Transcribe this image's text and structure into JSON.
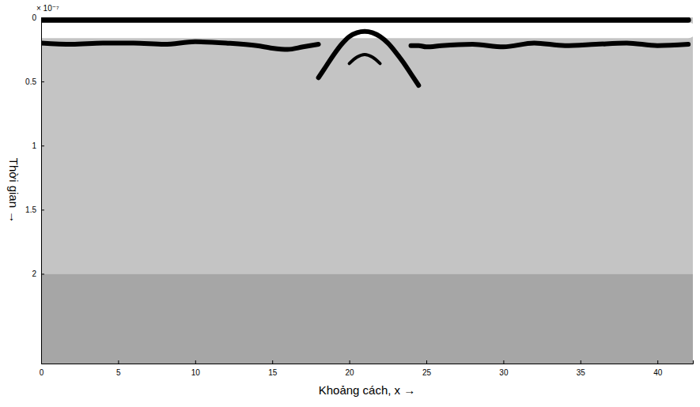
{
  "chart_data": {
    "type": "line",
    "x_label": "Khoảng cách, x →",
    "y_label": "Thời gian →",
    "annotations": [
      "× 10⁻⁷"
    ],
    "xlim": [
      0,
      42.3
    ],
    "xticks": [
      0,
      5,
      10,
      15,
      20,
      25,
      30,
      35,
      40
    ],
    "ylim": [
      0,
      2.7
    ],
    "yticks": [
      0,
      0.5,
      1,
      1.5,
      2
    ],
    "record_end": 2,
    "grid": false,
    "x": [
      0,
      2,
      4,
      6,
      8,
      10,
      12,
      14,
      15,
      16,
      17,
      18,
      18.5,
      19,
      19.5,
      20,
      20.5,
      21,
      21.5,
      22,
      22.5,
      23,
      23.5,
      24,
      24.5,
      25,
      26,
      28,
      30,
      32,
      34,
      36,
      38,
      40,
      42
    ],
    "series": [
      {
        "color": "#ffffff",
        "values": [
          0.1,
          0.1,
          0.1,
          0.1,
          0.1,
          0.1,
          0.1,
          0.1,
          0.1,
          0.1,
          0.1,
          0.1,
          0.1,
          0.1,
          0.1,
          0.1,
          0.1,
          0.1,
          0.1,
          0.1,
          0.1,
          0.1,
          0.1,
          0.1,
          0.1,
          0.1,
          0.1,
          0.1,
          0.1,
          0.1,
          0.1,
          0.1,
          0.1,
          0.1,
          0.1
        ]
      },
      {
        "color": "#000000",
        "values": [
          0.02,
          0.02,
          0.02,
          0.02,
          0.02,
          0.02,
          0.02,
          0.02,
          0.02,
          0.02,
          0.02,
          0.02,
          0.02,
          0.02,
          0.02,
          0.02,
          0.02,
          0.02,
          0.02,
          0.02,
          0.02,
          0.02,
          0.02,
          0.02,
          0.02,
          0.02,
          0.02,
          0.02,
          0.02,
          0.02,
          0.02,
          0.02,
          0.02,
          0.02,
          0.02
        ]
      },
      {
        "color": "#000000",
        "values": [
          0.2,
          0.21,
          0.2,
          0.2,
          0.21,
          0.19,
          0.2,
          0.22,
          0.24,
          0.25,
          0.23,
          0.21,
          null,
          null,
          null,
          null,
          null,
          null,
          null,
          null,
          null,
          null,
          null,
          0.22,
          0.22,
          0.23,
          0.22,
          0.21,
          0.23,
          0.2,
          0.22,
          0.21,
          0.2,
          0.22,
          0.21
        ]
      },
      {
        "color": "#000000",
        "values": [
          null,
          null,
          null,
          null,
          null,
          null,
          null,
          null,
          null,
          null,
          null,
          0.47,
          0.38,
          0.29,
          0.21,
          0.15,
          0.12,
          0.11,
          0.12,
          0.15,
          0.2,
          0.27,
          0.35,
          0.44,
          0.53,
          null,
          null,
          null,
          null,
          null,
          null,
          null,
          null,
          null,
          null
        ]
      },
      {
        "color": "#000000",
        "values": [
          null,
          null,
          null,
          null,
          null,
          null,
          null,
          null,
          null,
          null,
          null,
          null,
          null,
          null,
          null,
          0.36,
          0.31,
          0.29,
          0.31,
          0.36,
          null,
          null,
          null,
          null,
          null,
          null,
          null,
          null,
          null,
          null,
          null,
          null,
          null,
          null,
          null
        ]
      }
    ]
  }
}
